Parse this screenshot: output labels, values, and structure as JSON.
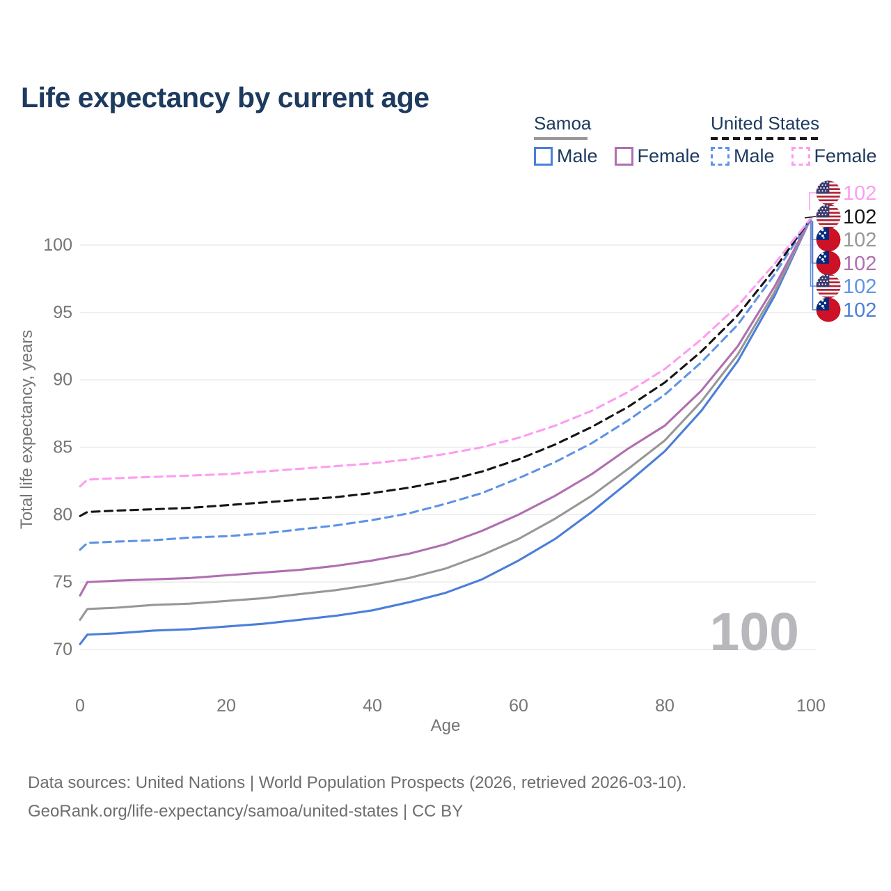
{
  "title": "Life expectancy by current age",
  "watermark": "100",
  "colors": {
    "title": "#1d3a5f",
    "axis_text": "#757575",
    "grid": "#ececec",
    "footer_text": "#6e6e6e",
    "watermark": "#b7b7bc",
    "samoa_male": "#4a7fd9",
    "samoa_female": "#b06fb0",
    "samoa_both": "#979797",
    "us_male": "#5e93e6",
    "us_female": "#fd9df1",
    "us_both": "#161616",
    "flag_us_red": "#B22234",
    "flag_us_blue": "#3C3B6E",
    "flag_samoa_red": "#CE1126",
    "flag_samoa_blue": "#002B7F"
  },
  "legend": {
    "samoa": {
      "label": "Samoa",
      "male": "Male",
      "female": "Female"
    },
    "us": {
      "label": "United States",
      "male": "Male",
      "female": "Female"
    }
  },
  "chart_data": {
    "type": "line",
    "title": "Life expectancy by current age",
    "xlabel": "Age",
    "ylabel": "Total life expectancy, years",
    "x_ticks": [
      0,
      20,
      40,
      60,
      80,
      100
    ],
    "y_ticks": [
      70,
      75,
      80,
      85,
      90,
      95,
      100
    ],
    "xlim": [
      0,
      100
    ],
    "ylim": [
      70,
      100
    ],
    "grid": "horizontal-only",
    "legend_position": "top-right",
    "ages": [
      0,
      1,
      5,
      10,
      15,
      20,
      25,
      30,
      35,
      40,
      45,
      50,
      55,
      60,
      65,
      70,
      75,
      80,
      85,
      90,
      95,
      100
    ],
    "series": [
      {
        "name": "Samoa Male",
        "country": "Samoa",
        "sex": "Male",
        "line": "solid",
        "color_key": "samoa_male",
        "values": [
          70.4,
          71.1,
          71.2,
          71.4,
          71.5,
          71.7,
          71.9,
          72.2,
          72.5,
          72.9,
          73.5,
          74.2,
          75.2,
          76.6,
          78.2,
          80.2,
          82.4,
          84.7,
          87.7,
          91.4,
          96.2,
          102
        ]
      },
      {
        "name": "Samoa Both sexes",
        "country": "Samoa",
        "sex": "Both",
        "line": "solid",
        "color_key": "samoa_both",
        "values": [
          72.2,
          73.0,
          73.1,
          73.3,
          73.4,
          73.6,
          73.8,
          74.1,
          74.4,
          74.8,
          75.3,
          76.0,
          77.0,
          78.2,
          79.7,
          81.4,
          83.4,
          85.5,
          88.4,
          91.9,
          96.5,
          102
        ]
      },
      {
        "name": "Samoa Female",
        "country": "Samoa",
        "sex": "Female",
        "line": "solid",
        "color_key": "samoa_female",
        "values": [
          74.0,
          75.0,
          75.1,
          75.2,
          75.3,
          75.5,
          75.7,
          75.9,
          76.2,
          76.6,
          77.1,
          77.8,
          78.8,
          80.0,
          81.4,
          83.0,
          84.9,
          86.6,
          89.2,
          92.5,
          96.9,
          102
        ]
      },
      {
        "name": "United States Male",
        "country": "United States",
        "sex": "Male",
        "line": "dashed",
        "color_key": "us_male",
        "values": [
          77.4,
          77.9,
          78.0,
          78.1,
          78.3,
          78.4,
          78.6,
          78.9,
          79.2,
          79.6,
          80.1,
          80.8,
          81.6,
          82.7,
          83.9,
          85.3,
          87.0,
          88.9,
          91.3,
          94.1,
          97.8,
          102
        ]
      },
      {
        "name": "United States Both sexes",
        "country": "United States",
        "sex": "Both",
        "line": "dashed",
        "color_key": "us_both",
        "values": [
          79.9,
          80.2,
          80.3,
          80.4,
          80.5,
          80.7,
          80.9,
          81.1,
          81.3,
          81.6,
          82.0,
          82.5,
          83.2,
          84.1,
          85.2,
          86.5,
          88.0,
          89.8,
          92.1,
          94.8,
          98.2,
          102
        ]
      },
      {
        "name": "United States Female",
        "country": "United States",
        "sex": "Female",
        "line": "dashed",
        "color_key": "us_female",
        "values": [
          82.1,
          82.6,
          82.7,
          82.8,
          82.9,
          83.0,
          83.2,
          83.4,
          83.6,
          83.8,
          84.1,
          84.5,
          85.0,
          85.7,
          86.6,
          87.7,
          89.1,
          90.8,
          93.0,
          95.5,
          98.6,
          102
        ]
      }
    ],
    "end_labels": [
      {
        "text": "102",
        "flag": "us",
        "color_key": "us_female",
        "series": "United States Female"
      },
      {
        "text": "102",
        "flag": "us",
        "color_key": "us_both",
        "series": "United States Both sexes"
      },
      {
        "text": "102",
        "flag": "samoa",
        "color_key": "samoa_both",
        "series": "Samoa Both sexes"
      },
      {
        "text": "102",
        "flag": "samoa",
        "color_key": "samoa_female",
        "series": "Samoa Female"
      },
      {
        "text": "102",
        "flag": "us",
        "color_key": "us_male",
        "series": "United States Male"
      },
      {
        "text": "102",
        "flag": "samoa",
        "color_key": "samoa_male",
        "series": "Samoa Male"
      }
    ]
  },
  "footer": {
    "line1": "Data sources: United Nations | World Population Prospects (2026, retrieved 2026-03-10).",
    "line2": "GeoRank.org/life-expectancy/samoa/united-states | CC BY"
  }
}
